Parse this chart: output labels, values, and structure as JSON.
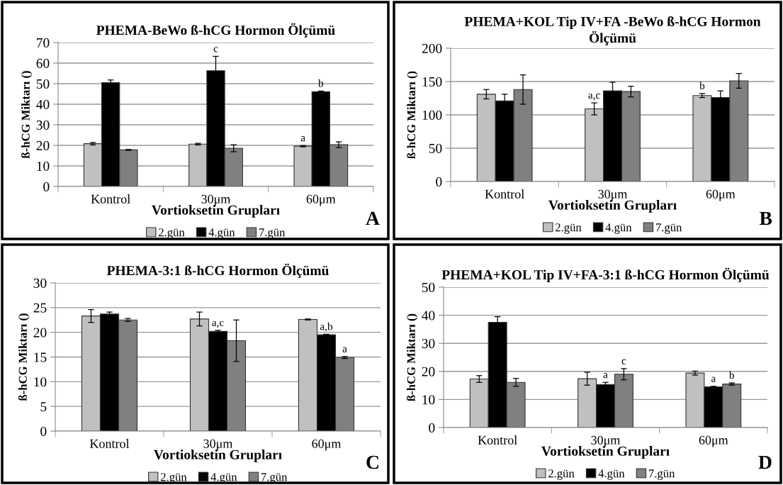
{
  "chart_data": [
    {
      "type": "bar",
      "title": "PHEMA-BeWo ß-hCG Hormon Ölçümü",
      "xlabel": "Vortioksetin Grupları",
      "ylabel": "ß-hCG Miktarı ()",
      "categories": [
        "Kontrol",
        "30μm",
        "60μm"
      ],
      "ylim": [
        0,
        70
      ],
      "yticks": [
        0,
        10,
        20,
        30,
        40,
        50,
        60,
        70
      ],
      "grid": "y",
      "legend": "bottom",
      "annotations": [
        "A"
      ],
      "series": [
        {
          "name": "2.gün",
          "color": "#c0c0c0",
          "values": [
            20.8,
            20.6,
            19.6
          ],
          "errors": [
            0.6,
            0.4,
            0.3
          ],
          "value_labels": [
            null,
            null,
            "a"
          ]
        },
        {
          "name": "4.gün",
          "color": "#000000",
          "values": [
            50.5,
            56.3,
            46.1
          ],
          "errors": [
            1.3,
            7,
            0.3
          ],
          "value_labels": [
            null,
            "c",
            "b"
          ]
        },
        {
          "name": "7.gün",
          "color": "#808080",
          "values": [
            17.8,
            18.6,
            20.3
          ],
          "errors": [
            0.2,
            1.7,
            1.4
          ],
          "value_labels": [
            null,
            null,
            null
          ]
        }
      ]
    },
    {
      "type": "bar",
      "title": "PHEMA+KOL Tip IV+FA -BeWo ß-hCG Hormon Ölçümü",
      "xlabel": "Vortioksetin Grupları",
      "ylabel": "ß-hCG Miktarı ()",
      "categories": [
        "Kontrol",
        "30μm",
        "60μm"
      ],
      "ylim": [
        0,
        200
      ],
      "yticks": [
        0,
        50,
        100,
        150,
        200
      ],
      "grid": "y",
      "legend": "bottom",
      "annotations": [
        "B"
      ],
      "series": [
        {
          "name": "2.gün",
          "color": "#c0c0c0",
          "values": [
            131,
            109,
            129
          ],
          "errors": [
            7,
            9,
            3
          ],
          "value_labels": [
            null,
            "a,c",
            "b"
          ]
        },
        {
          "name": "4.gün",
          "color": "#000000",
          "values": [
            121,
            136,
            126
          ],
          "errors": [
            10,
            13,
            10
          ],
          "value_labels": [
            null,
            null,
            null
          ]
        },
        {
          "name": "7.gün",
          "color": "#808080",
          "values": [
            138,
            135,
            151
          ],
          "errors": [
            22,
            8,
            11
          ],
          "value_labels": [
            null,
            null,
            null
          ]
        }
      ]
    },
    {
      "type": "bar",
      "title": "PHEMA-3:1 ß-hCG Hormon Ölçümü",
      "xlabel": "Vortioksetin Grupları",
      "ylabel": "ß-hCG Miktarı ()",
      "categories": [
        "Kontrol",
        "30μm",
        "60μm"
      ],
      "ylim": [
        0,
        30
      ],
      "yticks": [
        0,
        5,
        10,
        15,
        20,
        25,
        30
      ],
      "grid": "y",
      "legend": "bottom",
      "annotations": [
        "C"
      ],
      "series": [
        {
          "name": "2.gün",
          "color": "#c0c0c0",
          "values": [
            23.3,
            22.7,
            22.6
          ],
          "errors": [
            1.3,
            1.4,
            0.1
          ],
          "value_labels": [
            null,
            null,
            null
          ]
        },
        {
          "name": "4.gün",
          "color": "#000000",
          "values": [
            23.7,
            20.2,
            19.5
          ],
          "errors": [
            0.4,
            0.2,
            0.1
          ],
          "value_labels": [
            null,
            "a,c",
            "a,b"
          ]
        },
        {
          "name": "7.gün",
          "color": "#808080",
          "values": [
            22.5,
            18.3,
            14.9
          ],
          "errors": [
            0.3,
            4.2,
            0.2
          ],
          "value_labels": [
            null,
            null,
            "a"
          ]
        }
      ]
    },
    {
      "type": "bar",
      "title": "PHEMA+KOL Tip IV+FA-3:1 ß-hCG Hormon Ölçümü",
      "xlabel": "Vortioksetin Grupları",
      "ylabel": "ß-hCG Miktarı ()",
      "categories": [
        "Kontrol",
        "30μm",
        "60μm"
      ],
      "ylim": [
        0,
        50
      ],
      "yticks": [
        0,
        10,
        20,
        30,
        40,
        50
      ],
      "grid": "y",
      "legend": "bottom",
      "annotations": [
        "D"
      ],
      "series": [
        {
          "name": "2.gün",
          "color": "#c0c0c0",
          "values": [
            17.3,
            17.4,
            19.4
          ],
          "errors": [
            1.2,
            2.3,
            0.7
          ],
          "value_labels": [
            null,
            null,
            null
          ]
        },
        {
          "name": "4.gün",
          "color": "#000000",
          "values": [
            37.5,
            15.3,
            14.5
          ],
          "errors": [
            2,
            0.8,
            0.2
          ],
          "value_labels": [
            null,
            "a",
            "a"
          ]
        },
        {
          "name": "7.gün",
          "color": "#808080",
          "values": [
            16.1,
            19,
            15.5
          ],
          "errors": [
            1.4,
            2,
            0.4
          ],
          "value_labels": [
            null,
            "c",
            "b"
          ]
        }
      ]
    }
  ]
}
